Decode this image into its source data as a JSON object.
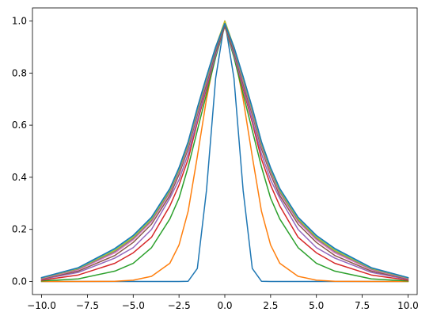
{
  "chart_data": {
    "type": "line",
    "title": "",
    "xlabel": "",
    "ylabel": "",
    "xlim": [
      -10.5,
      10.5
    ],
    "ylim": [
      -0.05,
      1.05
    ],
    "xticks": [
      -10.0,
      -7.5,
      -5.0,
      -2.5,
      0.0,
      2.5,
      5.0,
      7.5,
      10.0
    ],
    "xtick_labels": [
      "−10.0",
      "−7.5",
      "−5.0",
      "−2.5",
      "0.0",
      "2.5",
      "5.0",
      "7.5",
      "10.0"
    ],
    "yticks": [
      0.0,
      0.2,
      0.4,
      0.6,
      0.8,
      1.0
    ],
    "ytick_labels": [
      "0.0",
      "0.2",
      "0.4",
      "0.6",
      "0.8",
      "1.0"
    ],
    "grid": false,
    "legend": "none",
    "x": [
      -10,
      -8,
      -6,
      -5,
      -4,
      -3,
      -2.5,
      -2,
      -1.5,
      -1,
      -0.5,
      0,
      0.5,
      1,
      1.5,
      2,
      2.5,
      3,
      4,
      5,
      6,
      8,
      10
    ],
    "series": [
      {
        "color": "#1f77b4",
        "values": [
          0,
          0,
          0,
          0,
          0,
          0,
          0,
          0.001,
          0.05,
          0.35,
          0.78,
          1.0,
          0.78,
          0.35,
          0.05,
          0.001,
          0,
          0,
          0,
          0,
          0,
          0,
          0
        ]
      },
      {
        "color": "#ff7f0e",
        "values": [
          0,
          0,
          0.001,
          0.005,
          0.02,
          0.07,
          0.14,
          0.27,
          0.48,
          0.7,
          0.88,
          0.99,
          0.88,
          0.7,
          0.48,
          0.27,
          0.14,
          0.07,
          0.02,
          0.005,
          0.001,
          0,
          0
        ]
      },
      {
        "color": "#2ca02c",
        "values": [
          0.002,
          0.01,
          0.04,
          0.07,
          0.13,
          0.24,
          0.32,
          0.44,
          0.58,
          0.72,
          0.86,
          0.98,
          0.86,
          0.72,
          0.58,
          0.44,
          0.32,
          0.24,
          0.13,
          0.07,
          0.04,
          0.01,
          0.002
        ]
      },
      {
        "color": "#d62728",
        "values": [
          0.005,
          0.025,
          0.07,
          0.11,
          0.17,
          0.29,
          0.37,
          0.47,
          0.61,
          0.74,
          0.87,
          0.98,
          0.87,
          0.74,
          0.61,
          0.47,
          0.37,
          0.29,
          0.17,
          0.11,
          0.07,
          0.025,
          0.005
        ]
      },
      {
        "color": "#9467bd",
        "values": [
          0.008,
          0.035,
          0.09,
          0.13,
          0.2,
          0.32,
          0.39,
          0.49,
          0.62,
          0.75,
          0.87,
          0.98,
          0.87,
          0.75,
          0.62,
          0.49,
          0.39,
          0.32,
          0.2,
          0.13,
          0.09,
          0.035,
          0.008
        ]
      },
      {
        "color": "#8c564b",
        "values": [
          0.01,
          0.04,
          0.1,
          0.15,
          0.22,
          0.33,
          0.41,
          0.51,
          0.64,
          0.76,
          0.88,
          0.98,
          0.88,
          0.76,
          0.64,
          0.51,
          0.41,
          0.33,
          0.22,
          0.15,
          0.1,
          0.04,
          0.01
        ]
      },
      {
        "color": "#e377c2",
        "values": [
          0.012,
          0.045,
          0.11,
          0.16,
          0.23,
          0.34,
          0.42,
          0.52,
          0.65,
          0.77,
          0.89,
          1.0,
          0.89,
          0.77,
          0.65,
          0.52,
          0.42,
          0.34,
          0.23,
          0.16,
          0.11,
          0.045,
          0.012
        ]
      },
      {
        "color": "#7f7f7f",
        "values": [
          0.013,
          0.048,
          0.115,
          0.165,
          0.235,
          0.345,
          0.425,
          0.525,
          0.655,
          0.775,
          0.89,
          0.99,
          0.89,
          0.775,
          0.655,
          0.525,
          0.425,
          0.345,
          0.235,
          0.165,
          0.115,
          0.048,
          0.013
        ]
      },
      {
        "color": "#bcbd22",
        "values": [
          0.014,
          0.05,
          0.12,
          0.17,
          0.24,
          0.35,
          0.43,
          0.53,
          0.66,
          0.78,
          0.9,
          1.0,
          0.9,
          0.78,
          0.66,
          0.53,
          0.43,
          0.35,
          0.24,
          0.17,
          0.12,
          0.05,
          0.014
        ]
      },
      {
        "color": "#17becf",
        "values": [
          0.015,
          0.052,
          0.125,
          0.175,
          0.245,
          0.355,
          0.435,
          0.535,
          0.665,
          0.785,
          0.9,
          0.99,
          0.9,
          0.785,
          0.665,
          0.535,
          0.435,
          0.355,
          0.245,
          0.175,
          0.125,
          0.052,
          0.015
        ]
      },
      {
        "color": "#1f77b4",
        "values": [
          0.015,
          0.053,
          0.127,
          0.177,
          0.247,
          0.357,
          0.437,
          0.537,
          0.667,
          0.787,
          0.9,
          0.99,
          0.9,
          0.787,
          0.667,
          0.537,
          0.437,
          0.357,
          0.247,
          0.177,
          0.127,
          0.053,
          0.015
        ]
      }
    ]
  }
}
